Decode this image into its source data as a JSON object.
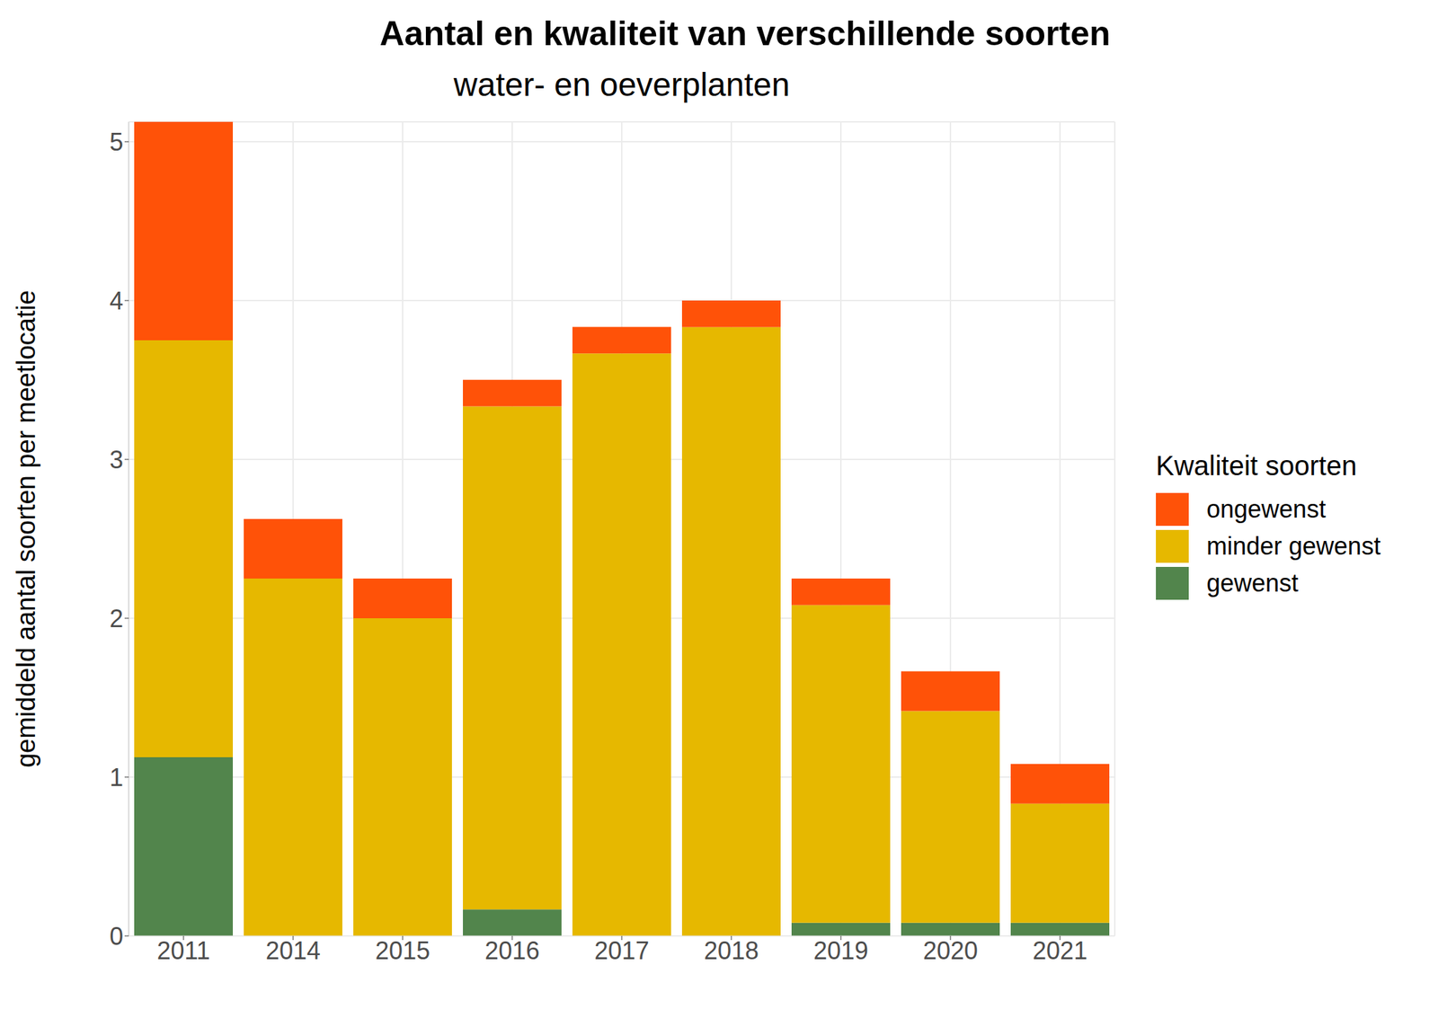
{
  "chart_data": {
    "type": "bar",
    "title": "Aantal en kwaliteit van verschillende soorten",
    "subtitle": "water- en oeverplanten",
    "y_label": "gemiddeld aantal soorten per meetlocatie",
    "legend_title": "Kwaliteit soorten",
    "legend": "right",
    "stacked": true,
    "grid": true,
    "categories": [
      "2011",
      "2014",
      "2015",
      "2016",
      "2017",
      "2018",
      "2019",
      "2020",
      "2021"
    ],
    "series": [
      {
        "name": "gewenst",
        "color": "#52854C",
        "values": [
          1.125,
          0,
          0,
          0.167,
          0,
          0,
          0.083,
          0.083,
          0.083
        ]
      },
      {
        "name": "minder gewenst",
        "color": "#E6B800",
        "values": [
          2.625,
          2.25,
          2.0,
          3.167,
          3.667,
          3.833,
          2.0,
          1.333,
          0.75
        ]
      },
      {
        "name": "ongewenst",
        "color": "#FF5208",
        "values": [
          1.375,
          0.375,
          0.25,
          0.167,
          0.167,
          0.167,
          0.167,
          0.25,
          0.25
        ]
      }
    ],
    "ylim": [
      0,
      5.125
    ],
    "yticks": [
      0,
      1,
      2,
      3,
      4,
      5
    ]
  }
}
